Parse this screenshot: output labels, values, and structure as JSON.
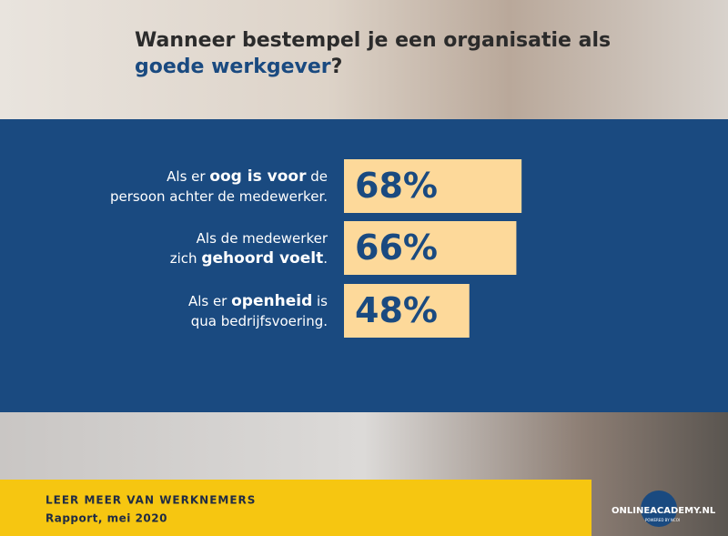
{
  "chart_data": {
    "type": "bar",
    "orientation": "horizontal",
    "title": [
      [
        {
          "text": "Wanneer bestempel je een organisatie als",
          "highlight": false
        }
      ],
      [
        {
          "text": "goede werkgever",
          "highlight": true
        },
        {
          "text": "?",
          "highlight": false
        }
      ]
    ],
    "categories": [
      [
        [
          {
            "text": "Als er ",
            "bold": false
          },
          {
            "text": "oog is voor",
            "bold": true
          },
          {
            "text": " de",
            "bold": false
          }
        ],
        [
          {
            "text": "persoon achter de medewerker.",
            "bold": false
          }
        ]
      ],
      [
        [
          {
            "text": "Als de medewerker",
            "bold": false
          }
        ],
        [
          {
            "text": "zich ",
            "bold": false
          },
          {
            "text": "gehoord voelt",
            "bold": true
          },
          {
            "text": ".",
            "bold": false
          }
        ]
      ],
      [
        [
          {
            "text": "Als er ",
            "bold": false
          },
          {
            "text": "openheid",
            "bold": true
          },
          {
            "text": " is",
            "bold": false
          }
        ],
        [
          {
            "text": "qua bedrijfsvoering.",
            "bold": false
          }
        ]
      ]
    ],
    "values": [
      68,
      66,
      48
    ],
    "value_labels": [
      "68%",
      "66%",
      "48%"
    ],
    "color": "#fdd99a",
    "xlim": [
      0,
      100
    ]
  },
  "footer": {
    "line1": "LEER MEER VAN WERKNEMERS",
    "line2": "Rapport, mei 2020"
  },
  "logo": {
    "part1": "ONLINE",
    "part2": "ACADEMY",
    "part3": ".NL",
    "tagline": "POWERED BY NCOI"
  }
}
